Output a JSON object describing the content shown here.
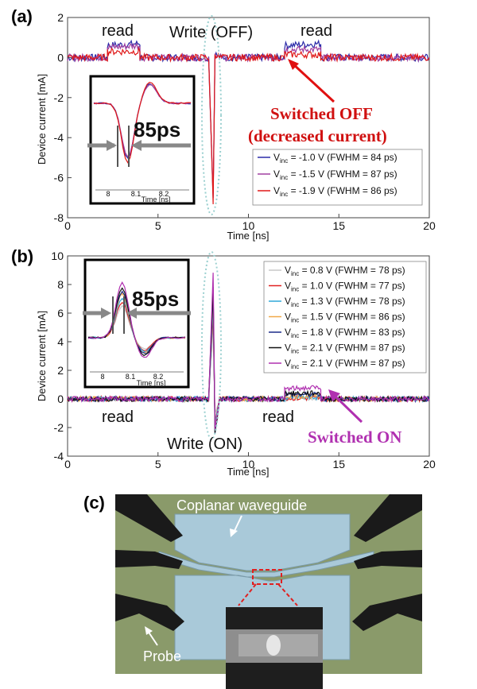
{
  "panels": {
    "a": {
      "label": "(a)"
    },
    "b": {
      "label": "(b)"
    },
    "c": {
      "label": "(c)"
    }
  },
  "chart_data": [
    {
      "type": "line",
      "panel": "(a)",
      "xlabel": "Time [ns]",
      "ylabel": "Device current [mA]",
      "xlim": [
        0,
        20
      ],
      "ylim": [
        -8,
        2
      ],
      "xticks": [
        "0",
        "5",
        "10",
        "15",
        "20"
      ],
      "yticks": [
        "2",
        "0",
        "-2",
        "-4",
        "-6",
        "-8"
      ],
      "legend_position": "bottom-right",
      "series": [
        {
          "name": "V_inc = -1.0 V (FWHM = 84 ps)",
          "label_main": "V",
          "label_sub": "inc",
          "label_rest": " = -1.0 V (FWHM = 84 ps)",
          "color": "#2a2aa8",
          "x": [
            0,
            2.2,
            2.2,
            4.0,
            4.0,
            7.8,
            8.05,
            8.15,
            8.4,
            12.0,
            12.0,
            14.0,
            14.0,
            20
          ],
          "y": [
            0,
            0,
            0.6,
            0.7,
            0,
            0,
            -7.0,
            0.2,
            0,
            0,
            0.6,
            0.7,
            0,
            0
          ]
        },
        {
          "name": "V_inc = -1.5 V (FWHM = 87 ps)",
          "label_main": "V",
          "label_sub": "inc",
          "label_rest": " = -1.5 V (FWHM = 87 ps)",
          "color": "#a040a0",
          "x": [
            0,
            2.2,
            2.2,
            4.0,
            4.0,
            7.8,
            8.05,
            8.15,
            8.4,
            12.0,
            12.0,
            14.0,
            14.0,
            20
          ],
          "y": [
            0,
            0,
            0.5,
            0.6,
            0,
            0,
            -6.8,
            0.2,
            0,
            0,
            0.4,
            0.4,
            0,
            0
          ]
        },
        {
          "name": "V_inc = -1.9 V (FWHM = 86 ps)",
          "label_main": "V",
          "label_sub": "inc",
          "label_rest": " = -1.9 V (FWHM = 86 ps)",
          "color": "#e01818",
          "x": [
            0,
            2.2,
            2.2,
            4.0,
            4.0,
            7.8,
            8.05,
            8.15,
            8.4,
            12.0,
            12.0,
            14.0,
            14.0,
            20
          ],
          "y": [
            0,
            0,
            0.3,
            0.3,
            0,
            0,
            -7.2,
            0.2,
            0,
            0,
            0.15,
            0.15,
            0,
            0
          ]
        }
      ],
      "annotations": [
        "read",
        "Write (OFF)",
        "read",
        "Switched OFF",
        "(decreased current)"
      ],
      "inset": {
        "xticks": [
          "8",
          "8.1",
          "8.2"
        ],
        "xlabel": "Time [ns]",
        "fwhm_label": "85ps"
      }
    },
    {
      "type": "line",
      "panel": "(b)",
      "xlabel": "Time [ns]",
      "ylabel": "Device current [mA]",
      "xlim": [
        0,
        20
      ],
      "ylim": [
        -4,
        10
      ],
      "xticks": [
        "0",
        "5",
        "10",
        "15",
        "20"
      ],
      "yticks": [
        "10",
        "8",
        "6",
        "4",
        "2",
        "0",
        "-2",
        "-4"
      ],
      "legend_position": "top-right",
      "series": [
        {
          "name": "V_inc = 0.8 V (FWHM = 78 ps)",
          "label_main": "V",
          "label_sub": "inc",
          "label_rest": " = 0.8 V (FWHM = 78 ps)",
          "color": "#c8c8c8",
          "x": [
            0,
            7.8,
            8.05,
            8.15,
            8.4,
            12.0,
            12.0,
            14.0,
            14.0,
            20
          ],
          "y": [
            0,
            0,
            5.0,
            -1.0,
            0,
            0,
            0.05,
            0.05,
            0,
            0
          ]
        },
        {
          "name": "V_inc = 1.0 V (FWHM = 77 ps)",
          "label_main": "V",
          "label_sub": "inc",
          "label_rest": " = 1.0 V (FWHM = 77 ps)",
          "color": "#e02020",
          "x": [
            0,
            7.8,
            8.05,
            8.15,
            8.4,
            12.0,
            12.0,
            14.0,
            14.0,
            20
          ],
          "y": [
            0,
            0,
            6.0,
            -1.5,
            0,
            0,
            0.05,
            0.05,
            0,
            0
          ]
        },
        {
          "name": "V_inc = 1.3 V (FWHM = 78 ps)",
          "label_main": "V",
          "label_sub": "inc",
          "label_rest": " = 1.3 V (FWHM = 78 ps)",
          "color": "#30a8d8",
          "x": [
            0,
            7.8,
            8.05,
            8.15,
            8.4,
            12.0,
            12.0,
            14.0,
            14.0,
            20
          ],
          "y": [
            0,
            0,
            6.5,
            -2.0,
            0,
            0,
            0.1,
            0.1,
            0,
            0
          ]
        },
        {
          "name": "V_inc = 1.5 V (FWHM = 86 ps)",
          "label_main": "V",
          "label_sub": "inc",
          "label_rest": " = 1.5 V (FWHM = 86 ps)",
          "color": "#f0a848",
          "x": [
            0,
            7.8,
            8.05,
            8.15,
            8.4,
            12.0,
            12.0,
            14.0,
            14.0,
            20
          ],
          "y": [
            0,
            0,
            7.0,
            -2.0,
            0,
            0,
            0.2,
            0.2,
            0,
            0
          ]
        },
        {
          "name": "V_inc = 1.8 V (FWHM = 83 ps)",
          "label_main": "V",
          "label_sub": "inc",
          "label_rest": " = 1.8 V (FWHM = 83 ps)",
          "color": "#1a2a88",
          "x": [
            0,
            7.8,
            8.05,
            8.15,
            8.4,
            12.0,
            12.0,
            14.0,
            14.0,
            20
          ],
          "y": [
            0,
            0,
            7.5,
            -2.5,
            0,
            0,
            0.3,
            0.3,
            0,
            0
          ]
        },
        {
          "name": "V_inc = 2.1 V (FWHM = 87 ps)",
          "label_main": "V",
          "label_sub": "inc",
          "label_rest": " = 2.1 V (FWHM = 87 ps)",
          "color": "#111111",
          "x": [
            0,
            7.8,
            8.05,
            8.15,
            8.4,
            12.0,
            12.0,
            14.0,
            14.0,
            20
          ],
          "y": [
            0,
            0,
            8.0,
            -2.5,
            0,
            0,
            0.4,
            0.4,
            0,
            0
          ]
        },
        {
          "name": "V_inc = 2.1 V (FWHM = 87 ps)",
          "label_main": "V",
          "label_sub": "inc",
          "label_rest": " = 2.1 V (FWHM = 87 ps)",
          "color": "#b030b0",
          "x": [
            0,
            7.8,
            8.05,
            8.15,
            8.4,
            12.0,
            12.0,
            14.0,
            14.0,
            20
          ],
          "y": [
            0,
            0,
            8.8,
            -2.0,
            0,
            0,
            0.7,
            0.8,
            0,
            0
          ]
        }
      ],
      "annotations": [
        "read",
        "read",
        "Write (ON)",
        "Switched ON"
      ],
      "inset": {
        "xticks": [
          "8",
          "8.1",
          "8.2"
        ],
        "xlabel": "Time [ns]",
        "fwhm_label": "85ps"
      }
    }
  ],
  "photo": {
    "labels": {
      "waveguide": "Coplanar waveguide",
      "probe": "Probe"
    },
    "colors": {
      "background": "#8a9a6a",
      "waveguide": "#a9c9d9",
      "probe": "#1a1a1a",
      "highlight": "#e02020"
    }
  }
}
